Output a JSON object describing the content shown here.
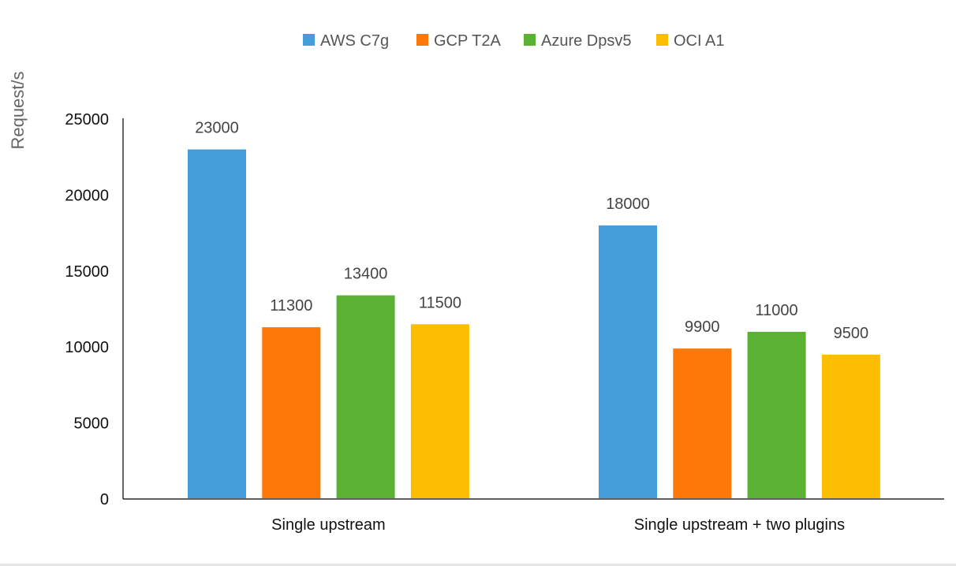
{
  "chart_data": {
    "type": "bar",
    "title": "",
    "xlabel": "",
    "ylabel": "Request/s",
    "ylim": [
      0,
      25000
    ],
    "yticks": [
      0,
      5000,
      10000,
      15000,
      20000,
      25000
    ],
    "grid": false,
    "legend_position": "top",
    "categories": [
      "Single upstream",
      "Single upstream + two plugins"
    ],
    "series": [
      {
        "name": "AWS C7g",
        "color": "#459ddb",
        "values": [
          23000,
          18000
        ]
      },
      {
        "name": "GCP T2A",
        "color": "#fd7806",
        "values": [
          11300,
          9900
        ]
      },
      {
        "name": "Azure Dpsv5",
        "color": "#5bb133",
        "values": [
          13400,
          11000
        ]
      },
      {
        "name": "OCI A1",
        "color": "#fdbd00",
        "values": [
          11500,
          9500
        ]
      }
    ]
  }
}
